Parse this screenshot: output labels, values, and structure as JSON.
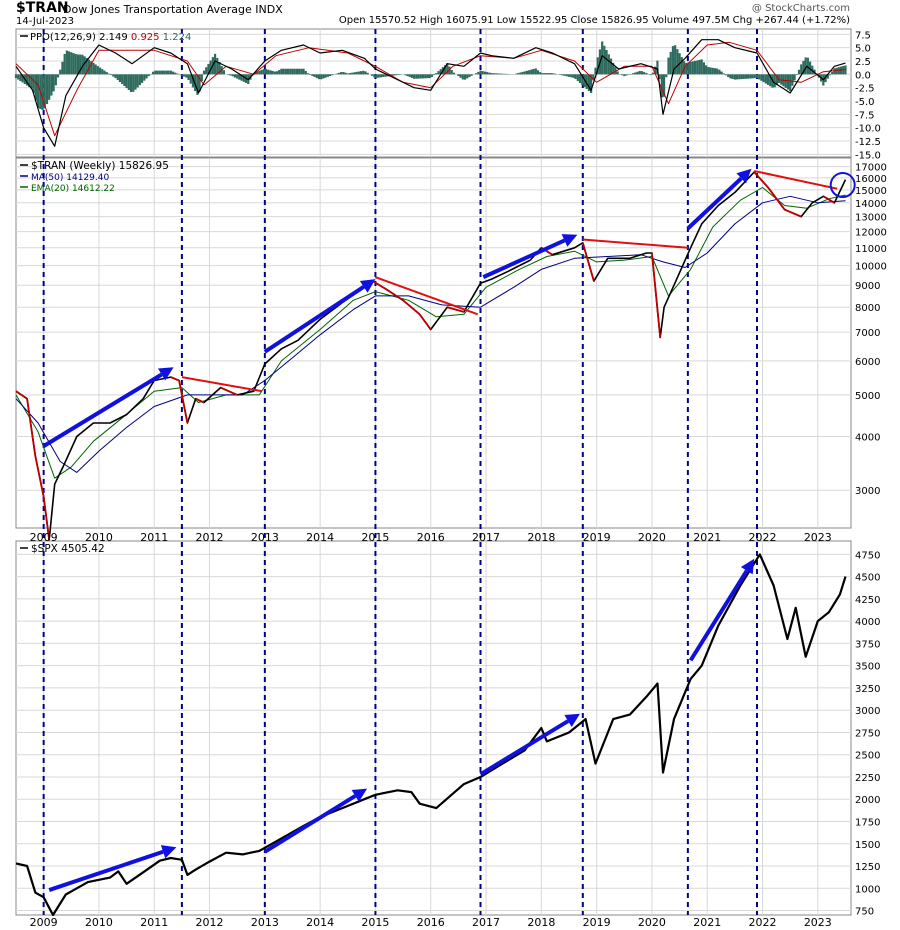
{
  "header": {
    "symbol": "$TRAN",
    "name": "Dow Jones Transportation Average",
    "exchange": "INDX",
    "date": "14-Jul-2023",
    "quote": "Open 15570.52  High 16075.91  Low 15522.95  Close 15826.95  Volume 497.5M  Chg +267.44 (+1.72%)",
    "watermark": "@ StockCharts.com"
  },
  "colors": {
    "price": "#000000",
    "down_bar": "#c00000",
    "ma50": "#000080",
    "ema20": "#006400",
    "ppo_line": "#000000",
    "ppo_signal": "#c00000",
    "ppo_hist": "#2e6b5e",
    "arrow": "#1010e0",
    "resistance": "#e01010",
    "vline": "#00008b",
    "grid": "#d8d8d8"
  },
  "chart_data": [
    {
      "type": "line",
      "panel": "ppo",
      "legend": [
        "PPO(12,26,9)",
        "2.149",
        "0.925",
        "1.224"
      ],
      "yticks": [
        7.5,
        5.0,
        2.5,
        0.0,
        -2.5,
        -5.0,
        -7.5,
        -10.0,
        -12.5,
        -15.0
      ],
      "ylim": [
        -15.5,
        8.5
      ],
      "series": [
        {
          "name": "PPO",
          "x": [
            2008.5,
            2008.8,
            2009.0,
            2009.2,
            2009.4,
            2009.7,
            2010.0,
            2010.3,
            2010.6,
            2011.0,
            2011.3,
            2011.6,
            2011.8,
            2012.1,
            2012.4,
            2012.7,
            2013.0,
            2013.3,
            2013.7,
            2014.0,
            2014.4,
            2014.8,
            2015.0,
            2015.3,
            2015.7,
            2016.0,
            2016.3,
            2016.6,
            2016.9,
            2017.1,
            2017.5,
            2017.9,
            2018.2,
            2018.6,
            2018.9,
            2019.1,
            2019.4,
            2019.8,
            2020.1,
            2020.2,
            2020.4,
            2020.6,
            2020.9,
            2021.2,
            2021.5,
            2021.9,
            2022.2,
            2022.5,
            2022.8,
            2023.1,
            2023.3,
            2023.5
          ],
          "y": [
            1.5,
            -3.0,
            -10.0,
            -13.5,
            -4.0,
            1.5,
            5.5,
            4.0,
            2.0,
            5.0,
            4.0,
            2.0,
            -3.5,
            2.5,
            1.0,
            -1.0,
            2.5,
            4.5,
            5.5,
            4.0,
            4.5,
            3.0,
            1.0,
            -0.5,
            -2.5,
            -3.0,
            2.0,
            1.5,
            4.0,
            3.5,
            3.0,
            5.0,
            4.0,
            2.0,
            -3.0,
            3.5,
            1.0,
            2.0,
            1.0,
            -7.5,
            1.0,
            3.0,
            6.5,
            6.5,
            5.0,
            4.0,
            -1.5,
            -3.5,
            1.5,
            -1.0,
            1.5,
            2.1
          ]
        },
        {
          "name": "Signal",
          "x": [
            2008.5,
            2008.9,
            2009.2,
            2009.6,
            2010.0,
            2010.4,
            2011.0,
            2011.6,
            2011.9,
            2012.3,
            2012.8,
            2013.2,
            2013.8,
            2014.5,
            2015.0,
            2015.5,
            2016.0,
            2016.4,
            2016.9,
            2017.5,
            2018.0,
            2018.6,
            2019.0,
            2019.5,
            2020.0,
            2020.3,
            2020.6,
            2021.0,
            2021.4,
            2021.9,
            2022.3,
            2022.7,
            2023.1,
            2023.5
          ],
          "y": [
            2.0,
            -2.0,
            -11.5,
            -3.0,
            4.5,
            4.5,
            4.5,
            2.5,
            -2.0,
            1.5,
            0.0,
            3.5,
            5.0,
            4.0,
            1.5,
            -1.5,
            -2.5,
            1.5,
            3.5,
            3.0,
            4.5,
            2.5,
            -1.5,
            1.5,
            1.5,
            -5.5,
            1.5,
            5.5,
            6.0,
            4.5,
            -1.0,
            -1.5,
            0.5,
            0.9
          ]
        }
      ]
    },
    {
      "type": "line",
      "panel": "price",
      "scale": "log",
      "legend": [
        "$TRAN (Weekly) 15826.95",
        "MA(50) 14129.40",
        "EMA(20) 14612.22"
      ],
      "yticks": [
        17000,
        16000,
        15000,
        14000,
        13000,
        12000,
        11000,
        10000,
        9000,
        8000,
        7000,
        6000,
        5000,
        4000,
        3000
      ],
      "ylim": [
        2450,
        17800
      ],
      "series": [
        {
          "name": "$TRAN",
          "x": [
            2008.5,
            2008.7,
            2008.85,
            2009.0,
            2009.1,
            2009.2,
            2009.35,
            2009.6,
            2009.9,
            2010.2,
            2010.5,
            2010.8,
            2011.0,
            2011.3,
            2011.45,
            2011.6,
            2011.75,
            2011.9,
            2012.2,
            2012.5,
            2012.8,
            2013.0,
            2013.3,
            2013.6,
            2014.0,
            2014.4,
            2014.8,
            2014.95,
            2015.2,
            2015.5,
            2015.8,
            2016.0,
            2016.3,
            2016.6,
            2016.9,
            2017.1,
            2017.4,
            2017.8,
            2018.0,
            2018.2,
            2018.6,
            2018.75,
            2018.95,
            2019.2,
            2019.6,
            2019.9,
            2020.0,
            2020.15,
            2020.22,
            2020.4,
            2020.7,
            2020.9,
            2021.2,
            2021.5,
            2021.85,
            2022.1,
            2022.4,
            2022.7,
            2022.9,
            2023.1,
            2023.3,
            2023.5
          ],
          "y": [
            5100,
            4900,
            3600,
            2900,
            2300,
            3100,
            3400,
            4000,
            4300,
            4300,
            4500,
            4900,
            5400,
            5500,
            5400,
            4300,
            4900,
            4800,
            5200,
            5000,
            5100,
            5900,
            6400,
            6700,
            7500,
            8200,
            8900,
            9200,
            8800,
            8300,
            7700,
            7100,
            8000,
            7800,
            9100,
            9300,
            9700,
            10300,
            11000,
            10600,
            11000,
            11300,
            9200,
            10400,
            10400,
            10700,
            10700,
            6800,
            8000,
            9000,
            11000,
            12500,
            13800,
            14800,
            16500,
            15200,
            13500,
            13000,
            14000,
            14500,
            14000,
            15850
          ]
        },
        {
          "name": "MA(50)",
          "x": [
            2008.5,
            2008.9,
            2009.3,
            2009.6,
            2010.0,
            2010.5,
            2011.0,
            2011.6,
            2012.0,
            2012.6,
            2013.0,
            2013.5,
            2014.0,
            2014.6,
            2015.0,
            2015.6,
            2016.2,
            2016.9,
            2017.5,
            2018.0,
            2018.6,
            2019.2,
            2019.8,
            2020.2,
            2020.6,
            2021.0,
            2021.5,
            2022.0,
            2022.5,
            2023.0,
            2023.5
          ],
          "y": [
            4900,
            4300,
            3500,
            3300,
            3700,
            4200,
            4700,
            5000,
            5000,
            5000,
            5400,
            6100,
            6900,
            7900,
            8500,
            8500,
            8100,
            8000,
            8900,
            9800,
            10400,
            10500,
            10600,
            10200,
            9900,
            10700,
            12500,
            14000,
            14500,
            14000,
            14150
          ]
        },
        {
          "name": "EMA(20)",
          "x": [
            2008.5,
            2008.9,
            2009.2,
            2009.5,
            2009.9,
            2010.4,
            2011.0,
            2011.5,
            2011.8,
            2012.3,
            2012.9,
            2013.3,
            2014.0,
            2014.6,
            2015.0,
            2015.6,
            2016.1,
            2016.6,
            2017.0,
            2017.6,
            2018.1,
            2018.6,
            2019.0,
            2019.5,
            2020.0,
            2020.3,
            2020.7,
            2021.1,
            2021.6,
            2022.0,
            2022.4,
            2022.8,
            2023.2,
            2023.5
          ],
          "y": [
            5000,
            4100,
            3200,
            3400,
            3900,
            4400,
            5100,
            5200,
            4800,
            5000,
            5000,
            6000,
            7100,
            8300,
            8700,
            8300,
            7600,
            7700,
            8900,
            9800,
            10500,
            10800,
            10200,
            10300,
            10500,
            8500,
            9800,
            12300,
            14200,
            15200,
            13800,
            13600,
            14300,
            14600
          ]
        }
      ],
      "annotations": {
        "up_arrows": [
          [
            2009.0,
            3800,
            2011.35,
            5800
          ],
          [
            2013.0,
            6300,
            2015.0,
            9300
          ],
          [
            2016.95,
            9400,
            2018.65,
            11800
          ],
          [
            2020.65,
            12200,
            2021.8,
            16800
          ]
        ],
        "resistance_lines": [
          [
            2011.5,
            5500,
            2012.95,
            5100
          ],
          [
            2015.0,
            9400,
            2016.85,
            7700
          ],
          [
            2018.75,
            11500,
            2020.65,
            11000
          ],
          [
            2021.85,
            16600,
            2023.35,
            15100
          ]
        ],
        "circle": [
          2023.45,
          15400
        ]
      }
    },
    {
      "type": "line",
      "panel": "spx",
      "legend": [
        "$SPX 4505.42"
      ],
      "yticks": [
        4750,
        4500,
        4250,
        4000,
        3750,
        3500,
        3250,
        3000,
        2750,
        2500,
        2250,
        2000,
        1750,
        1500,
        1250,
        1000,
        750
      ],
      "ylim": [
        700,
        4900
      ],
      "series": [
        {
          "name": "$SPX",
          "x": [
            2008.5,
            2008.7,
            2008.85,
            2009.0,
            2009.17,
            2009.4,
            2009.8,
            2010.2,
            2010.35,
            2010.5,
            2010.8,
            2011.1,
            2011.3,
            2011.5,
            2011.6,
            2011.75,
            2012.0,
            2012.3,
            2012.6,
            2012.9,
            2013.3,
            2013.7,
            2014.0,
            2014.4,
            2014.8,
            2015.0,
            2015.4,
            2015.65,
            2015.8,
            2016.1,
            2016.6,
            2016.9,
            2017.3,
            2017.7,
            2018.0,
            2018.1,
            2018.5,
            2018.8,
            2018.98,
            2019.3,
            2019.6,
            2019.9,
            2020.1,
            2020.2,
            2020.4,
            2020.7,
            2020.9,
            2021.2,
            2021.6,
            2021.95,
            2022.2,
            2022.45,
            2022.6,
            2022.78,
            2023.0,
            2023.2,
            2023.4,
            2023.5
          ],
          "y": [
            1280,
            1250,
            950,
            900,
            700,
            930,
            1070,
            1120,
            1190,
            1050,
            1180,
            1310,
            1340,
            1320,
            1150,
            1210,
            1300,
            1400,
            1380,
            1420,
            1560,
            1700,
            1800,
            1900,
            2000,
            2050,
            2100,
            2080,
            1950,
            1900,
            2170,
            2250,
            2400,
            2550,
            2800,
            2650,
            2750,
            2900,
            2400,
            2900,
            2950,
            3150,
            3300,
            2300,
            2900,
            3350,
            3500,
            3950,
            4400,
            4750,
            4400,
            3800,
            4150,
            3600,
            4000,
            4100,
            4300,
            4500
          ]
        }
      ],
      "annotations": {
        "up_arrows": [
          [
            2009.1,
            980,
            2011.4,
            1460
          ],
          [
            2013.0,
            1410,
            2014.85,
            2120
          ],
          [
            2016.9,
            2280,
            2018.7,
            2960
          ],
          [
            2020.7,
            3560,
            2021.85,
            4700
          ]
        ]
      }
    }
  ],
  "xaxis": {
    "years": [
      "2009",
      "2010",
      "2011",
      "2012",
      "2013",
      "2014",
      "2015",
      "2016",
      "2017",
      "2018",
      "2019",
      "2020",
      "2021",
      "2022",
      "2023"
    ],
    "vlines": [
      2009.0,
      2011.5,
      2013.0,
      2015.0,
      2016.9,
      2018.75,
      2020.65,
      2021.9
    ]
  }
}
